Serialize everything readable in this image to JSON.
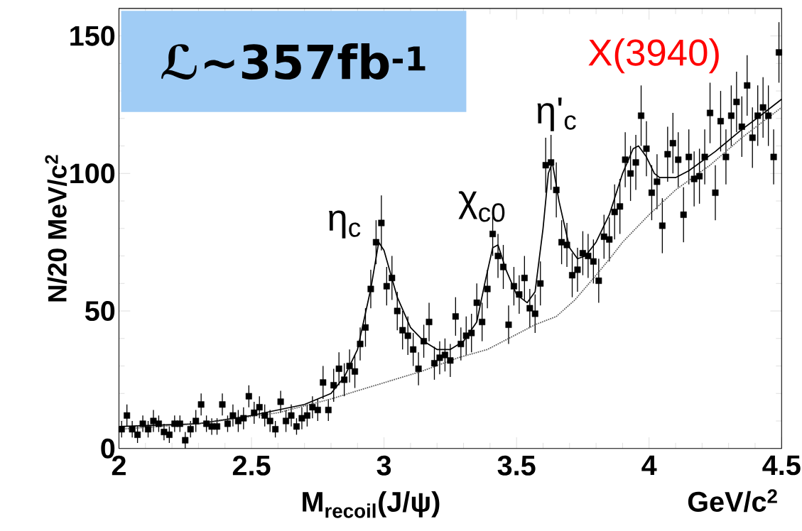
{
  "chart_data": {
    "type": "scatter",
    "xlabel": "M$_{recoil}$(J/ψ)",
    "ylabel": "N/20 MeV/c$^{2}$",
    "annotations": [
      "ℒ~357fb$^{-1}$",
      "GeV/c$^{2}$",
      {
        "text": "η$_{c}$",
        "x": 2.97,
        "y": 75
      },
      {
        "text": "χ$_{c0}$",
        "x": 3.41,
        "y": 78
      },
      {
        "text": "η'$_{c}$",
        "x": 3.63,
        "y": 104
      },
      {
        "text": "X(3940)",
        "x": 3.95,
        "y": 110
      }
    ],
    "xlim": [
      2,
      4.5
    ],
    "ylim": [
      0,
      160
    ],
    "xticks": [
      2,
      2.5,
      3,
      3.5,
      4,
      4.5
    ],
    "yticks": [
      0,
      50,
      100,
      150
    ],
    "marker": "square",
    "series": [
      {
        "color": "#000000",
        "x": [
          2.01,
          2.03,
          2.05,
          2.07,
          2.09,
          2.11,
          2.13,
          2.15,
          2.17,
          2.19,
          2.21,
          2.23,
          2.25,
          2.27,
          2.29,
          2.31,
          2.33,
          2.35,
          2.37,
          2.39,
          2.41,
          2.43,
          2.45,
          2.47,
          2.49,
          2.51,
          2.53,
          2.55,
          2.57,
          2.59,
          2.61,
          2.63,
          2.65,
          2.67,
          2.69,
          2.71,
          2.73,
          2.75,
          2.77,
          2.79,
          2.81,
          2.83,
          2.85,
          2.87,
          2.89,
          2.91,
          2.93,
          2.95,
          2.97,
          2.99,
          3.01,
          3.03,
          3.05,
          3.07,
          3.09,
          3.11,
          3.13,
          3.15,
          3.17,
          3.19,
          3.21,
          3.23,
          3.25,
          3.27,
          3.29,
          3.31,
          3.33,
          3.35,
          3.37,
          3.39,
          3.41,
          3.43,
          3.45,
          3.47,
          3.49,
          3.51,
          3.53,
          3.55,
          3.57,
          3.59,
          3.61,
          3.63,
          3.65,
          3.67,
          3.69,
          3.71,
          3.73,
          3.75,
          3.77,
          3.79,
          3.81,
          3.83,
          3.85,
          3.87,
          3.89,
          3.91,
          3.93,
          3.95,
          3.97,
          3.99,
          4.01,
          4.03,
          4.05,
          4.07,
          4.09,
          4.11,
          4.13,
          4.15,
          4.17,
          4.19,
          4.21,
          4.23,
          4.25,
          4.27,
          4.29,
          4.31,
          4.33,
          4.35,
          4.37,
          4.39,
          4.41,
          4.43,
          4.45,
          4.47,
          4.49
        ],
        "values": [
          7,
          12,
          7,
          5,
          9,
          7,
          10,
          9,
          6,
          5,
          9,
          9,
          3,
          7,
          10,
          16,
          9,
          8,
          8,
          16,
          9,
          12,
          10,
          11,
          19,
          13,
          15,
          12,
          10,
          7,
          17,
          10,
          12,
          8,
          11,
          12,
          15,
          14,
          24,
          14,
          23,
          29,
          25,
          30,
          28,
          38,
          44,
          58,
          75,
          82,
          59,
          62,
          50,
          43,
          41,
          36,
          29,
          39,
          46,
          31,
          33,
          34,
          32,
          48,
          38,
          41,
          42,
          53,
          46,
          58,
          78,
          70,
          66,
          45,
          59,
          56,
          62,
          51,
          49,
          60,
          103,
          104,
          94,
          75,
          74,
          63,
          65,
          71,
          70,
          68,
          61,
          77,
          76,
          86,
          88,
          105,
          100,
          104,
          121,
          109,
          93,
          97,
          81,
          107,
          111,
          105,
          85,
          106,
          98,
          99,
          106,
          122,
          93,
          119,
          106,
          121,
          126,
          117,
          132,
          113,
          121,
          124,
          121,
          106,
          144
        ],
        "errors": [
          3,
          4,
          3,
          3,
          3,
          3,
          4,
          3,
          3,
          3,
          3,
          3,
          3,
          3,
          4,
          4,
          3,
          3,
          3,
          4,
          3,
          4,
          4,
          4,
          4,
          4,
          4,
          4,
          4,
          3,
          4,
          4,
          4,
          3,
          4,
          4,
          4,
          4,
          6,
          4,
          6,
          6,
          6,
          6,
          6,
          6,
          7,
          7,
          8,
          10,
          7,
          8,
          7,
          7,
          7,
          6,
          6,
          6,
          7,
          6,
          6,
          6,
          6,
          7,
          6,
          7,
          7,
          7,
          7,
          7,
          8,
          8,
          8,
          7,
          7,
          7,
          8,
          7,
          7,
          8,
          10,
          10,
          10,
          8,
          8,
          8,
          8,
          8,
          8,
          8,
          8,
          8,
          8,
          10,
          10,
          10,
          10,
          10,
          11,
          10,
          10,
          10,
          10,
          10,
          11,
          10,
          10,
          10,
          10,
          10,
          10,
          11,
          10,
          11,
          10,
          11,
          11,
          11,
          11,
          11,
          11,
          11,
          11,
          10,
          11
        ]
      },
      {
        "type": "line",
        "color": "#000000",
        "line_style": "solid",
        "marker": "none",
        "x": [
          2.0,
          2.3,
          2.5,
          2.7,
          2.8,
          2.85,
          2.9,
          2.95,
          2.98,
          3.0,
          3.05,
          3.1,
          3.15,
          3.2,
          3.25,
          3.3,
          3.35,
          3.38,
          3.41,
          3.43,
          3.46,
          3.5,
          3.54,
          3.57,
          3.6,
          3.62,
          3.635,
          3.66,
          3.7,
          3.73,
          3.76,
          3.8,
          3.85,
          3.9,
          3.94,
          3.96,
          3.99,
          4.02,
          4.04,
          4.1,
          4.15,
          4.25,
          4.35,
          4.42,
          4.5
        ],
        "values": [
          8,
          9,
          12,
          16,
          20,
          26,
          36,
          58,
          75,
          72,
          55,
          44,
          39,
          36,
          36,
          39,
          46,
          60,
          73,
          74,
          65,
          56,
          53,
          57,
          80,
          100,
          104,
          90,
          73,
          69,
          70,
          75,
          85,
          100,
          109,
          110,
          106,
          100,
          98.5,
          98.5,
          101,
          108,
          116,
          121,
          127
        ]
      },
      {
        "type": "line",
        "color": "#555555",
        "line_style": "dotted",
        "marker": "none",
        "x": [
          2.0,
          2.3,
          2.6,
          2.8,
          2.9,
          3.14,
          3.28,
          3.39,
          3.57,
          3.65,
          3.72,
          3.8,
          3.86,
          3.9,
          4.0,
          4.1,
          4.23,
          4.35,
          4.5
        ],
        "values": [
          7,
          9,
          13,
          18,
          21,
          28,
          33,
          36,
          45,
          48,
          54,
          63,
          70,
          75,
          85,
          94,
          103,
          113,
          124
        ]
      }
    ]
  }
}
